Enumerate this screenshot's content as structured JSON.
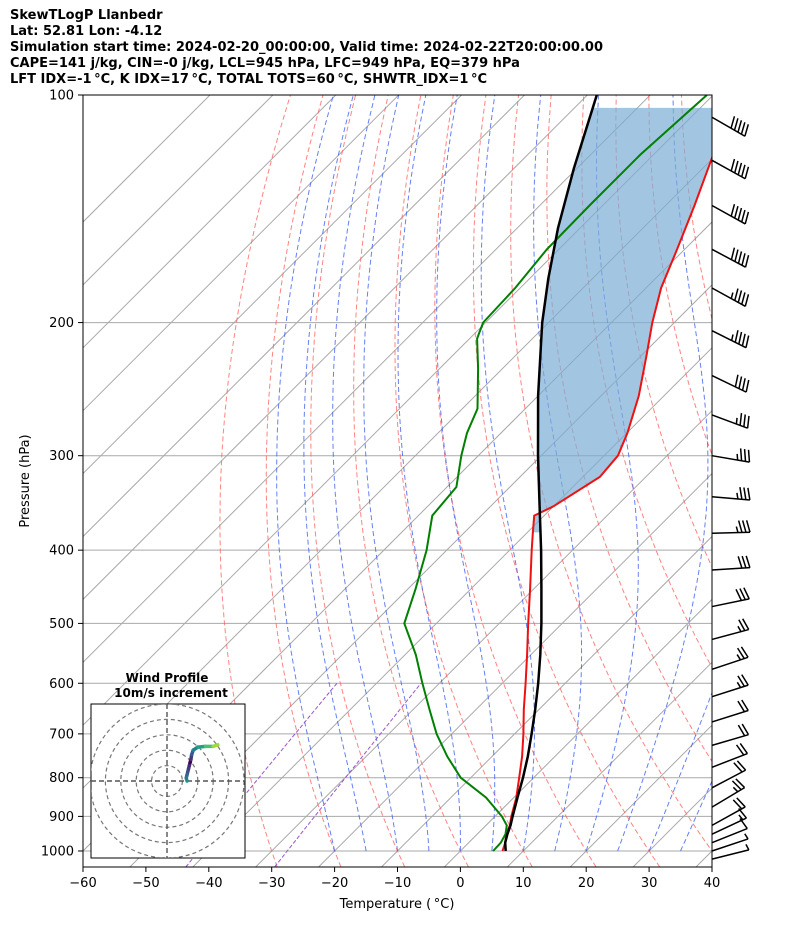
{
  "header": {
    "title": "SkewTLogP Llanbedr",
    "location": "Lat: 52.81   Lon: -4.12",
    "times": "Simulation start time: 2024-02-20_00:00:00, Valid time: 2024-02-22T20:00:00.00",
    "indices1": "CAPE=141 j/kg, CIN=-0 j/kg, LCL=945 hPa, LFC=949 hPa, EQ=379 hPa",
    "indices2": "LFT IDX=-1 °C, K IDX=17 °C, TOTAL TOTS=60 °C, SHWTR_IDX=1 °C"
  },
  "chart_data": {
    "type": "skew-t log-p",
    "xlabel": "Temperature ( °C)",
    "ylabel": "Pressure (hPa)",
    "xlim": [
      -60,
      40
    ],
    "plim": [
      1050,
      100
    ],
    "x_ticks": [
      -60,
      -50,
      -40,
      -30,
      -20,
      -10,
      0,
      10,
      20,
      30,
      40
    ],
    "p_ticks": [
      100,
      200,
      300,
      400,
      500,
      600,
      700,
      800,
      900,
      1000
    ],
    "grid": true,
    "colors": {
      "temperature": "#ee1111",
      "dewpoint": "#008000",
      "parcel": "#000000",
      "cape": "#7aaed4",
      "dry_adiabat": "#ff5a5a",
      "moist_adiabat": "#3355ee",
      "isotherm": "#a9a9a9",
      "mixing_ratio": "#9955cc",
      "barb": "#000000"
    },
    "temperature": [
      {
        "p": 1000,
        "t": 6.7
      },
      {
        "p": 975,
        "t": 5.8
      },
      {
        "p": 950,
        "t": 4.6
      },
      {
        "p": 925,
        "t": 3.8
      },
      {
        "p": 900,
        "t": 2.6
      },
      {
        "p": 850,
        "t": 0.4
      },
      {
        "p": 800,
        "t": -2.3
      },
      {
        "p": 750,
        "t": -5.2
      },
      {
        "p": 700,
        "t": -8.6
      },
      {
        "p": 650,
        "t": -12.4
      },
      {
        "p": 600,
        "t": -16.3
      },
      {
        "p": 550,
        "t": -20.6
      },
      {
        "p": 500,
        "t": -25.4
      },
      {
        "p": 450,
        "t": -30.6
      },
      {
        "p": 400,
        "t": -36.5
      },
      {
        "p": 380,
        "t": -39.0
      },
      {
        "p": 360,
        "t": -41.6
      },
      {
        "p": 350,
        "t": -40.0
      },
      {
        "p": 320,
        "t": -37.3
      },
      {
        "p": 300,
        "t": -37.8
      },
      {
        "p": 280,
        "t": -39.9
      },
      {
        "p": 250,
        "t": -44.0
      },
      {
        "p": 220,
        "t": -49.4
      },
      {
        "p": 200,
        "t": -53.5
      },
      {
        "p": 180,
        "t": -57.6
      },
      {
        "p": 160,
        "t": -61.2
      },
      {
        "p": 140,
        "t": -65.4
      },
      {
        "p": 120,
        "t": -70.5
      },
      {
        "p": 100,
        "t": -73.9
      }
    ],
    "dewpoint": [
      {
        "p": 1000,
        "t": 5.2
      },
      {
        "p": 975,
        "t": 5.1
      },
      {
        "p": 950,
        "t": 4.5
      },
      {
        "p": 925,
        "t": 3.3
      },
      {
        "p": 900,
        "t": 1.1
      },
      {
        "p": 850,
        "t": -4.4
      },
      {
        "p": 800,
        "t": -11.6
      },
      {
        "p": 750,
        "t": -17.1
      },
      {
        "p": 700,
        "t": -22.4
      },
      {
        "p": 650,
        "t": -27.4
      },
      {
        "p": 600,
        "t": -32.7
      },
      {
        "p": 550,
        "t": -38.3
      },
      {
        "p": 500,
        "t": -45.1
      },
      {
        "p": 450,
        "t": -48.8
      },
      {
        "p": 400,
        "t": -53.2
      },
      {
        "p": 360,
        "t": -57.8
      },
      {
        "p": 330,
        "t": -58.5
      },
      {
        "p": 300,
        "t": -62.7
      },
      {
        "p": 280,
        "t": -65.4
      },
      {
        "p": 260,
        "t": -67.6
      },
      {
        "p": 230,
        "t": -73.9
      },
      {
        "p": 210,
        "t": -78.8
      },
      {
        "p": 200,
        "t": -80.4
      },
      {
        "p": 180,
        "t": -80.8
      },
      {
        "p": 160,
        "t": -81.9
      },
      {
        "p": 140,
        "t": -82.1
      },
      {
        "p": 120,
        "t": -82.1
      },
      {
        "p": 100,
        "t": -81.0
      }
    ],
    "parcel": [
      {
        "p": 1000,
        "t": 7.2
      },
      {
        "p": 975,
        "t": 5.8
      },
      {
        "p": 950,
        "t": 4.8
      },
      {
        "p": 925,
        "t": 3.9
      },
      {
        "p": 900,
        "t": 2.8
      },
      {
        "p": 850,
        "t": 0.6
      },
      {
        "p": 800,
        "t": -1.7
      },
      {
        "p": 750,
        "t": -4.3
      },
      {
        "p": 700,
        "t": -7.3
      },
      {
        "p": 650,
        "t": -10.6
      },
      {
        "p": 600,
        "t": -14.3
      },
      {
        "p": 550,
        "t": -18.5
      },
      {
        "p": 500,
        "t": -23.3
      },
      {
        "p": 450,
        "t": -28.8
      },
      {
        "p": 400,
        "t": -35.0
      },
      {
        "p": 350,
        "t": -42.2
      },
      {
        "p": 300,
        "t": -50.5
      },
      {
        "p": 250,
        "t": -60.0
      },
      {
        "p": 200,
        "t": -71.0
      },
      {
        "p": 175,
        "t": -77.0
      },
      {
        "p": 150,
        "t": -83.5
      },
      {
        "p": 125,
        "t": -90.5
      },
      {
        "p": 100,
        "t": -98.5
      }
    ],
    "winds": [
      {
        "p": 1025,
        "u_kt": -4,
        "v_kt": -1
      },
      {
        "p": 1000,
        "u_kt": -6,
        "v_kt": -2
      },
      {
        "p": 975,
        "u_kt": -10,
        "v_kt": -4
      },
      {
        "p": 950,
        "u_kt": -15,
        "v_kt": -7
      },
      {
        "p": 925,
        "u_kt": -18,
        "v_kt": -10
      },
      {
        "p": 875,
        "u_kt": -20,
        "v_kt": -12
      },
      {
        "p": 825,
        "u_kt": -19,
        "v_kt": -10
      },
      {
        "p": 775,
        "u_kt": -18,
        "v_kt": -7
      },
      {
        "p": 725,
        "u_kt": -17,
        "v_kt": -5
      },
      {
        "p": 675,
        "u_kt": -19,
        "v_kt": -6
      },
      {
        "p": 625,
        "u_kt": -22,
        "v_kt": -7
      },
      {
        "p": 575,
        "u_kt": -24,
        "v_kt": -8
      },
      {
        "p": 525,
        "u_kt": -26,
        "v_kt": -7
      },
      {
        "p": 475,
        "u_kt": -29,
        "v_kt": -6
      },
      {
        "p": 425,
        "u_kt": -32,
        "v_kt": -2
      },
      {
        "p": 380,
        "u_kt": -35,
        "v_kt": -1
      },
      {
        "p": 340,
        "u_kt": -35,
        "v_kt": 3
      },
      {
        "p": 300,
        "u_kt": -35,
        "v_kt": 6
      },
      {
        "p": 265,
        "u_kt": -35,
        "v_kt": 13
      },
      {
        "p": 235,
        "u_kt": -35,
        "v_kt": 17
      },
      {
        "p": 205,
        "u_kt": -40,
        "v_kt": 20
      },
      {
        "p": 180,
        "u_kt": -40,
        "v_kt": 22
      },
      {
        "p": 160,
        "u_kt": -45,
        "v_kt": 24
      },
      {
        "p": 140,
        "u_kt": -45,
        "v_kt": 25
      },
      {
        "p": 122,
        "u_kt": -45,
        "v_kt": 25
      },
      {
        "p": 107,
        "u_kt": -45,
        "v_kt": 26
      }
    ],
    "hodograph": {
      "title": "Wind Profile",
      "subtitle": "10m/s increment",
      "ring_spacing_ms": 10,
      "range_ms": 50,
      "colormap": "viridis",
      "points": [
        {
          "u": 13,
          "v": 0
        },
        {
          "u": 12.5,
          "v": 2
        },
        {
          "u": 13,
          "v": 4
        },
        {
          "u": 13.5,
          "v": 6
        },
        {
          "u": 14,
          "v": 8
        },
        {
          "u": 14.5,
          "v": 10
        },
        {
          "u": 15,
          "v": 12
        },
        {
          "u": 15.5,
          "v": 14
        },
        {
          "u": 16,
          "v": 17
        },
        {
          "u": 17,
          "v": 20
        },
        {
          "u": 20,
          "v": 22
        },
        {
          "u": 25,
          "v": 22.5
        },
        {
          "u": 30,
          "v": 22.5
        },
        {
          "u": 33,
          "v": 23.5
        }
      ]
    }
  }
}
